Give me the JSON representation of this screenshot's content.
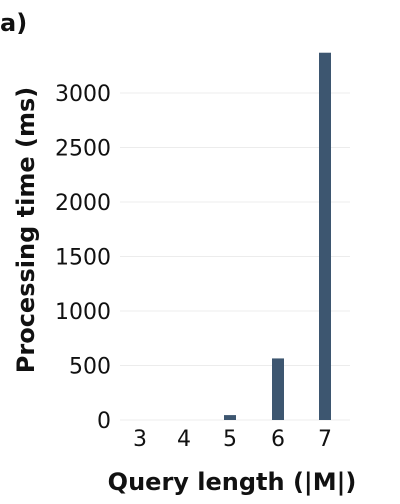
{
  "chart_data": {
    "type": "bar",
    "panel_label": "a)",
    "categories": [
      "3",
      "4",
      "5",
      "6",
      "7"
    ],
    "values": [
      0,
      0,
      45,
      565,
      3370
    ],
    "xlabel": "Query length (|M|)",
    "ylabel": "Processing time (ms)",
    "ylim": [
      0,
      3450
    ],
    "yticks": [
      0,
      500,
      1000,
      1500,
      2000,
      2500,
      3000
    ],
    "grid": true,
    "legend": "none",
    "bar_color": "#3d5670",
    "grid_color": "#ececec"
  }
}
